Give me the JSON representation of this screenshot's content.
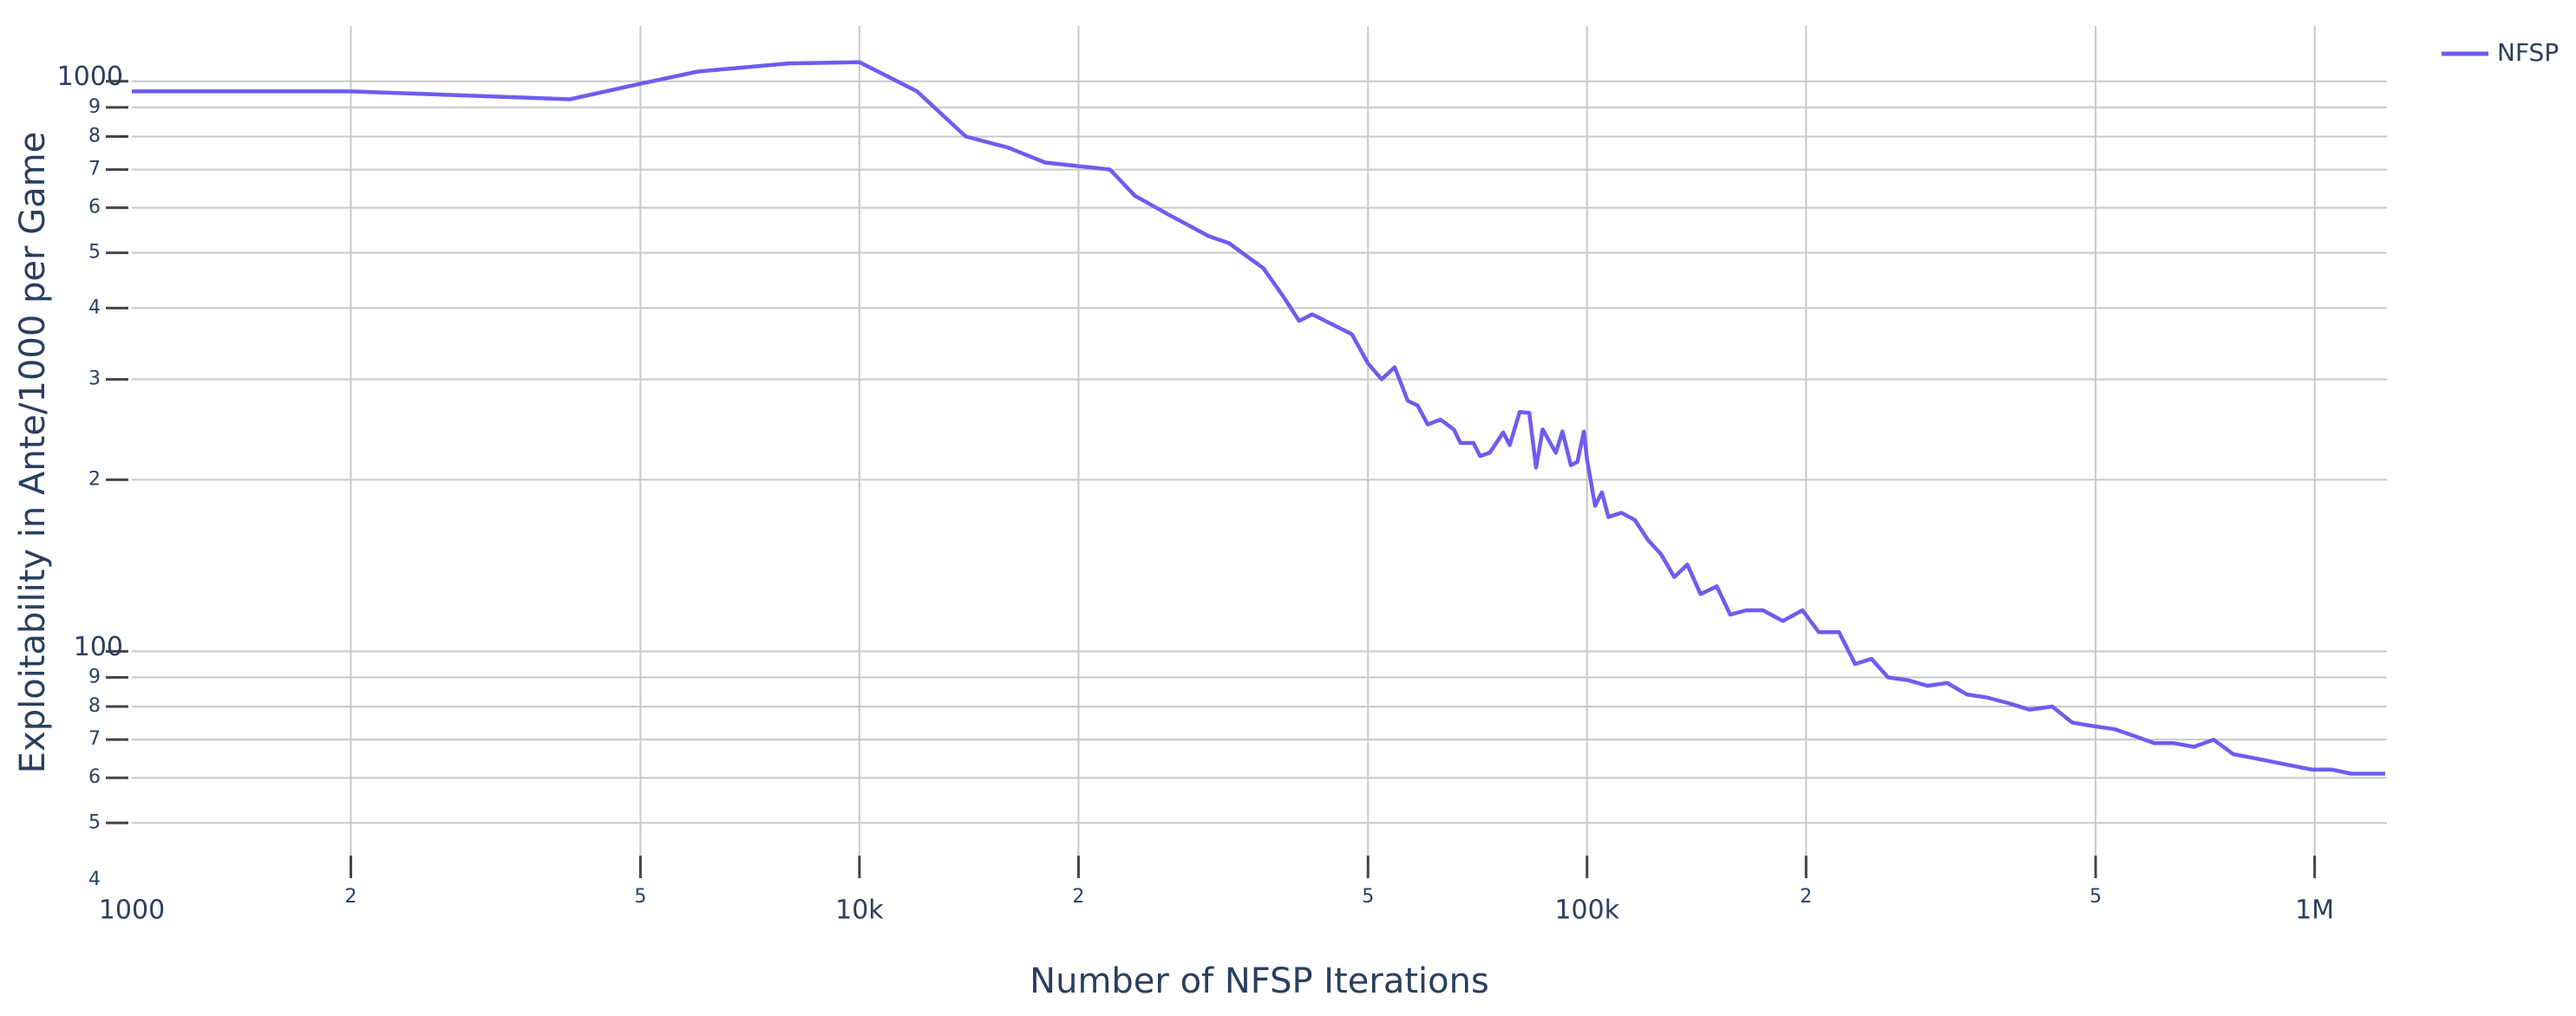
{
  "chart_data": {
    "type": "line",
    "x_label": "Number of NFSP Iterations",
    "y_label": "Exploitability in Ante/1000 per Game",
    "xscale": "log",
    "yscale": "log",
    "grid": true,
    "legend": "top-right",
    "xlim": [
      1000,
      1257000
    ],
    "ylim": [
      40,
      1250
    ],
    "xticks": [
      1000,
      {
        "value": 2000,
        "label": "2"
      },
      {
        "value": 5000,
        "label": "5"
      },
      {
        "value": 10000,
        "label": "10k"
      },
      {
        "value": 20000,
        "label": "2"
      },
      {
        "value": 50000,
        "label": "5"
      },
      {
        "value": 100000,
        "label": "100k"
      },
      {
        "value": 200000,
        "label": "2"
      },
      {
        "value": 500000,
        "label": "5"
      },
      {
        "value": 1000000,
        "label": "1M"
      }
    ],
    "yticks": [
      {
        "value": 40,
        "label": "4"
      },
      {
        "value": 50,
        "label": "5"
      },
      {
        "value": 60,
        "label": "6"
      },
      {
        "value": 70,
        "label": "7"
      },
      {
        "value": 80,
        "label": "8"
      },
      {
        "value": 90,
        "label": "9"
      },
      100,
      {
        "value": 200,
        "label": "2"
      },
      {
        "value": 300,
        "label": "3"
      },
      {
        "value": 400,
        "label": "4"
      },
      {
        "value": 500,
        "label": "5"
      },
      {
        "value": 600,
        "label": "6"
      },
      {
        "value": 700,
        "label": "7"
      },
      {
        "value": 800,
        "label": "8"
      },
      {
        "value": 900,
        "label": "9"
      },
      1000
    ],
    "x": [
      1000,
      2000,
      4000,
      5000,
      6000,
      8000,
      10000,
      12000,
      14000,
      16000,
      18000,
      22100,
      23900,
      26500,
      30200,
      32200,
      35900,
      38200,
      40200,
      41900,
      47500,
      50000,
      52200,
      54400,
      56700,
      58500,
      60400,
      62900,
      65600,
      67000,
      69800,
      71300,
      73500,
      76700,
      78300,
      80800,
      83300,
      85100,
      86900,
      90600,
      92500,
      95000,
      97000,
      99000,
      100000,
      102600,
      104800,
      107000,
      111500,
      116300,
      121200,
      126400,
      131800,
      137400,
      143200,
      150800,
      157300,
      165700,
      174500,
      185800,
      197700,
      208300,
      222000,
      233600,
      246000,
      259200,
      275800,
      293600,
      312600,
      332700,
      354100,
      380900,
      405500,
      436000,
      464200,
      494100,
      531500,
      565600,
      602200,
      641000,
      682300,
      726100,
      773000,
      823000,
      876000,
      932000,
      992000,
      1056000,
      1124000,
      1197000,
      1250000
    ],
    "series": [
      {
        "name": "NFSP",
        "color": "#6e5cf0",
        "values": [
          960,
          960,
          930,
          990,
          1040,
          1075,
          1080,
          960,
          800,
          765,
          720,
          700,
          630,
          585,
          535,
          520,
          470,
          420,
          380,
          390,
          360,
          320,
          300,
          315,
          275,
          270,
          250,
          255,
          245,
          232,
          232,
          220,
          223,
          242,
          230,
          263,
          262,
          210,
          245,
          223,
          243,
          212,
          215,
          243,
          217,
          180,
          190,
          172,
          175,
          170,
          157,
          148,
          135,
          142,
          126,
          130,
          116,
          118,
          118,
          113,
          118,
          108,
          108,
          95,
          97,
          90,
          89,
          87,
          88,
          84,
          83,
          81,
          79,
          80,
          75,
          74,
          73,
          71,
          69,
          69,
          68,
          70,
          66,
          65,
          64,
          63,
          62,
          62,
          61,
          61,
          61
        ]
      }
    ]
  }
}
